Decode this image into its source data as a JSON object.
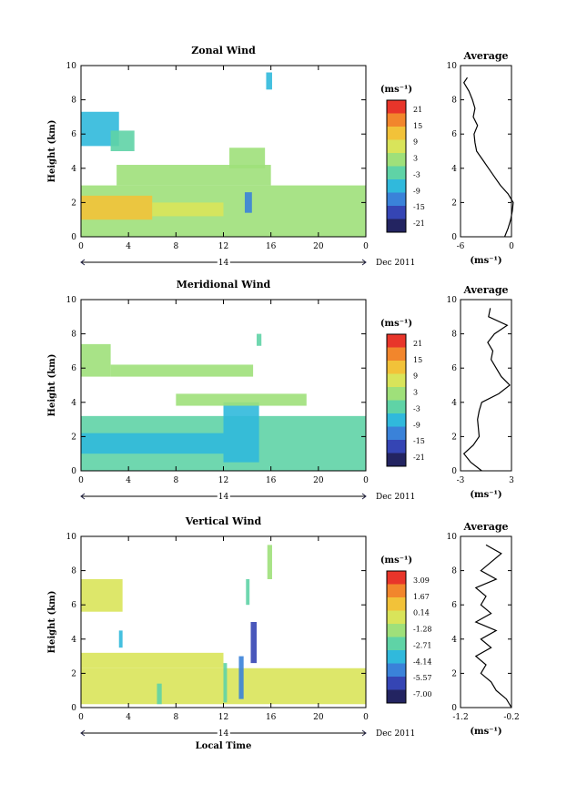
{
  "figure": {
    "date_label": "Dec 2011",
    "day_label": "14",
    "xlabel": "Local Time",
    "average_title": "Average",
    "unit_label": "(ms⁻¹)"
  },
  "chart_data": [
    {
      "type": "heatmap",
      "title": "Zonal Wind",
      "xlabel": "",
      "ylabel": "Height (km)",
      "x_ticks": [
        "0",
        "4",
        "8",
        "12",
        "16",
        "20",
        "0"
      ],
      "xlim": [
        0,
        24
      ],
      "y_ticks": [
        "0",
        "2",
        "4",
        "6",
        "8",
        "10"
      ],
      "ylim": [
        0,
        10
      ],
      "colorbar": {
        "unit": "(ms⁻¹)",
        "ticks": [
          "21",
          "15",
          "9",
          "3",
          "-3",
          "-9",
          "-15",
          "-21"
        ],
        "range": [
          -24,
          24
        ]
      },
      "regions": [
        {
          "x0": 0,
          "x1": 3.2,
          "y0": 5.3,
          "y1": 7.3,
          "value": -6
        },
        {
          "x0": 2.5,
          "x1": 4.5,
          "y0": 5.0,
          "y1": 6.2,
          "value": -5
        },
        {
          "x0": 0,
          "x1": 24,
          "y0": 0,
          "y1": 3.0,
          "value": 4
        },
        {
          "x0": 0,
          "x1": 6,
          "y0": 1.0,
          "y1": 2.4,
          "value": 11
        },
        {
          "x0": 6,
          "x1": 12,
          "y0": 1.2,
          "y1": 2.0,
          "value": 8
        },
        {
          "x0": 3,
          "x1": 16,
          "y0": 3.0,
          "y1": 4.2,
          "value": 3
        },
        {
          "x0": 12.5,
          "x1": 15.5,
          "y0": 4.0,
          "y1": 5.2,
          "value": 2
        },
        {
          "x0": 15.6,
          "x1": 16.1,
          "y0": 8.6,
          "y1": 9.6,
          "value": -8
        },
        {
          "x0": 13.8,
          "x1": 14.4,
          "y0": 1.4,
          "y1": 2.6,
          "value": -14
        }
      ],
      "average_profile": {
        "xlim": [
          -6,
          0
        ],
        "x_ticks": [
          "-6",
          "0"
        ],
        "heights": [
          0.0,
          0.5,
          1.0,
          1.5,
          2.0,
          2.5,
          3.0,
          3.5,
          4.0,
          4.5,
          5.0,
          5.5,
          6.0,
          6.5,
          7.0,
          7.5,
          8.0,
          8.5,
          9.0,
          9.3
        ],
        "values": [
          -0.8,
          -0.4,
          -0.1,
          0.1,
          0.2,
          -0.4,
          -1.3,
          -2.0,
          -2.7,
          -3.4,
          -4.1,
          -4.3,
          -4.4,
          -4.0,
          -4.5,
          -4.3,
          -4.6,
          -5.0,
          -5.6,
          -5.2
        ]
      }
    },
    {
      "type": "heatmap",
      "title": "Meridional Wind",
      "xlabel": "",
      "ylabel": "Height (km)",
      "x_ticks": [
        "0",
        "4",
        "8",
        "12",
        "16",
        "20",
        "0"
      ],
      "xlim": [
        0,
        24
      ],
      "y_ticks": [
        "0",
        "2",
        "4",
        "6",
        "8",
        "10"
      ],
      "ylim": [
        0,
        10
      ],
      "colorbar": {
        "unit": "(ms⁻¹)",
        "ticks": [
          "21",
          "15",
          "9",
          "3",
          "-3",
          "-9",
          "-15",
          "-21"
        ],
        "range": [
          -24,
          24
        ]
      },
      "regions": [
        {
          "x0": 0,
          "x1": 2.5,
          "y0": 5.5,
          "y1": 7.4,
          "value": 4
        },
        {
          "x0": 2.5,
          "x1": 14.5,
          "y0": 5.5,
          "y1": 6.2,
          "value": 2
        },
        {
          "x0": 0,
          "x1": 24,
          "y0": 0,
          "y1": 3.2,
          "value": -5
        },
        {
          "x0": 0,
          "x1": 12,
          "y0": 1.0,
          "y1": 2.2,
          "value": -9
        },
        {
          "x0": 12,
          "x1": 15,
          "y0": 0.5,
          "y1": 4.0,
          "value": -7
        },
        {
          "x0": 8,
          "x1": 19,
          "y0": 3.8,
          "y1": 4.5,
          "value": 1
        },
        {
          "x0": 14.8,
          "x1": 15.2,
          "y0": 7.3,
          "y1": 8.0,
          "value": -3
        }
      ],
      "average_profile": {
        "xlim": [
          -3,
          3
        ],
        "x_ticks": [
          "-3",
          "3"
        ],
        "heights": [
          0.0,
          0.5,
          1.0,
          1.5,
          2.0,
          2.5,
          3.0,
          3.5,
          4.0,
          4.5,
          5.0,
          5.5,
          6.0,
          6.5,
          7.0,
          7.5,
          8.0,
          8.5,
          9.0,
          9.5
        ],
        "values": [
          -0.5,
          -1.8,
          -2.6,
          -1.5,
          -0.8,
          -0.9,
          -1.0,
          -0.8,
          -0.5,
          1.5,
          2.8,
          1.8,
          1.2,
          0.6,
          0.8,
          0.2,
          1.0,
          2.5,
          0.3,
          0.5
        ]
      }
    },
    {
      "type": "heatmap",
      "title": "Vertical Wind",
      "xlabel": "Local Time",
      "ylabel": "Height (km)",
      "x_ticks": [
        "0",
        "4",
        "8",
        "12",
        "16",
        "20",
        "0"
      ],
      "xlim": [
        0,
        24
      ],
      "y_ticks": [
        "0",
        "2",
        "4",
        "6",
        "8",
        "10"
      ],
      "ylim": [
        0,
        10
      ],
      "colorbar": {
        "unit": "(ms⁻¹)",
        "ticks": [
          "3.09",
          "1.67",
          "0.14",
          "-1.28",
          "-2.71",
          "-4.14",
          "-5.57",
          "-7.00"
        ],
        "range": [
          -7.7,
          3.8
        ]
      },
      "regions": [
        {
          "x0": 0,
          "x1": 3.5,
          "y0": 5.6,
          "y1": 7.5,
          "value": -0.6
        },
        {
          "x0": 0,
          "x1": 24,
          "y0": 0.2,
          "y1": 2.3,
          "value": 0.6
        },
        {
          "x0": 0,
          "x1": 12,
          "y0": 2.3,
          "y1": 3.2,
          "value": 0.3
        },
        {
          "x0": 6.4,
          "x1": 6.8,
          "y0": 0.2,
          "y1": 1.4,
          "value": -2.6
        },
        {
          "x0": 12.0,
          "x1": 12.3,
          "y0": 0.3,
          "y1": 2.6,
          "value": -3.2
        },
        {
          "x0": 13.3,
          "x1": 13.7,
          "y0": 0.5,
          "y1": 3.0,
          "value": -5.0
        },
        {
          "x0": 14.3,
          "x1": 14.8,
          "y0": 2.6,
          "y1": 5.0,
          "value": -6.5
        },
        {
          "x0": 13.9,
          "x1": 14.2,
          "y0": 6.0,
          "y1": 7.5,
          "value": -3.0
        },
        {
          "x0": 15.7,
          "x1": 16.1,
          "y0": 7.5,
          "y1": 9.5,
          "value": -1.5
        },
        {
          "x0": 3.2,
          "x1": 3.5,
          "y0": 3.5,
          "y1": 4.5,
          "value": -3.3
        }
      ],
      "average_profile": {
        "xlim": [
          -1.2,
          -0.2
        ],
        "x_ticks": [
          "-1.2",
          "-0.2"
        ],
        "heights": [
          0.0,
          0.5,
          1.0,
          1.5,
          2.0,
          2.5,
          3.0,
          3.5,
          4.0,
          4.5,
          5.0,
          5.5,
          6.0,
          6.5,
          7.0,
          7.5,
          8.0,
          8.5,
          9.0,
          9.5
        ],
        "values": [
          -0.2,
          -0.3,
          -0.5,
          -0.6,
          -0.8,
          -0.7,
          -0.9,
          -0.6,
          -0.8,
          -0.5,
          -0.9,
          -0.6,
          -0.8,
          -0.7,
          -0.9,
          -0.5,
          -0.8,
          -0.6,
          -0.4,
          -0.7
        ]
      }
    }
  ]
}
